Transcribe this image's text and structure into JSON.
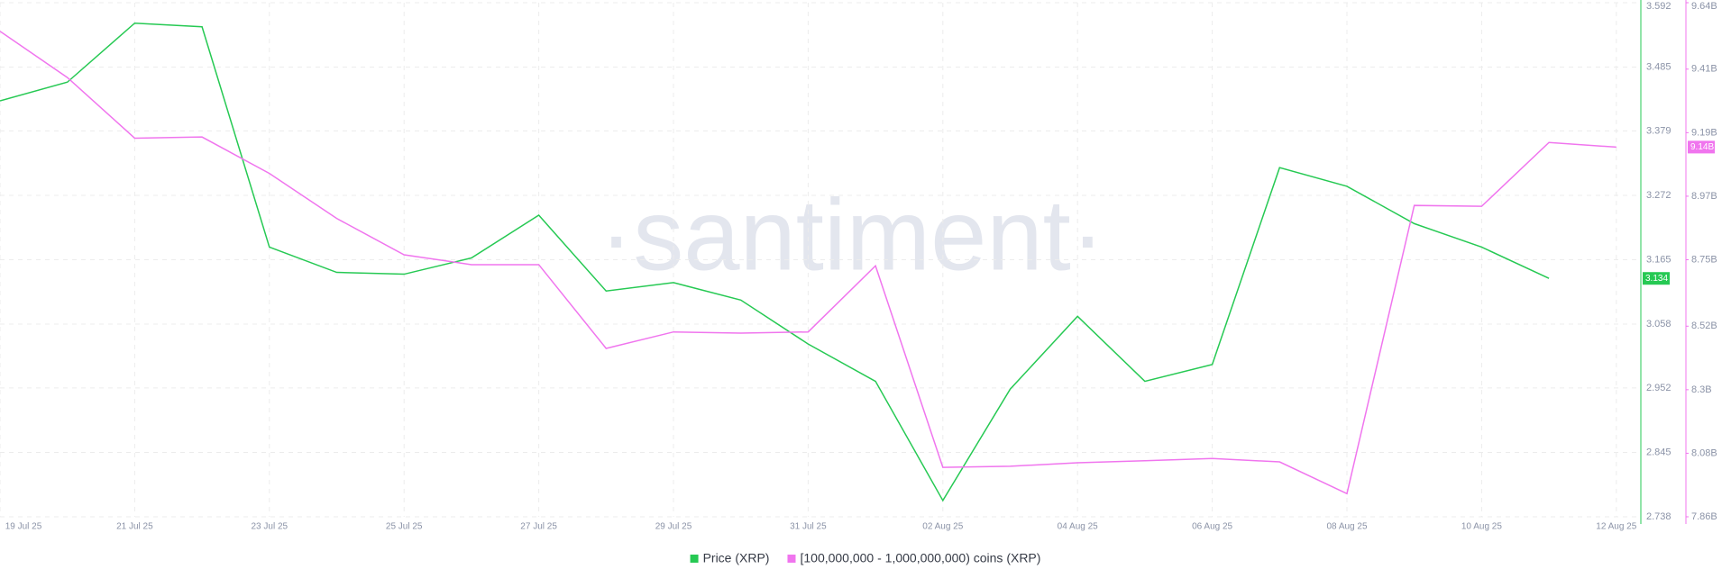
{
  "chart_data": {
    "type": "line",
    "categories": [
      "19 Jul 25",
      null,
      "21 Jul 25",
      null,
      "23 Jul 25",
      null,
      "25 Jul 25",
      null,
      "27 Jul 25",
      null,
      "29 Jul 25",
      null,
      "31 Jul 25",
      null,
      "02 Aug 25",
      null,
      "04 Aug 25",
      null,
      "06 Aug 25",
      null,
      "08 Aug 25",
      null,
      "10 Aug 25",
      null,
      "12 Aug 25"
    ],
    "series": [
      {
        "name": "Price (XRP)",
        "color": "#26c953",
        "axis": "y",
        "values": [
          3.429,
          3.46,
          3.558,
          3.552,
          3.186,
          3.144,
          3.141,
          3.168,
          3.239,
          3.113,
          3.127,
          3.098,
          3.025,
          2.963,
          2.765,
          2.95,
          3.071,
          2.963,
          2.991,
          3.318,
          3.287,
          3.225,
          3.186,
          3.134,
          null
        ],
        "value_labels": [
          null,
          null,
          null,
          null,
          null,
          null,
          null,
          null,
          null,
          null,
          null,
          null,
          null,
          null,
          null,
          null,
          null,
          null,
          null,
          null,
          null,
          null,
          null,
          "3.134",
          null
        ]
      },
      {
        "name": "[100,000,000 - 1,000,000,000) coins (XRP)",
        "color": "#f075ee",
        "axis": "y2",
        "values": [
          9.541,
          9.381,
          9.171,
          9.175,
          9.049,
          8.893,
          8.767,
          8.733,
          8.733,
          8.443,
          8.5,
          8.496,
          8.5,
          8.729,
          8.031,
          8.035,
          8.047,
          8.054,
          8.062,
          8.05,
          7.94,
          8.938,
          8.935,
          9.156,
          9.14
        ],
        "value_labels": [
          null,
          null,
          null,
          null,
          null,
          null,
          null,
          null,
          null,
          null,
          null,
          null,
          null,
          null,
          null,
          null,
          null,
          null,
          null,
          null,
          null,
          null,
          null,
          null,
          "9.14B"
        ]
      }
    ],
    "ylim": [
      2.738,
      3.592
    ],
    "yticks": [
      2.738,
      2.845,
      2.952,
      3.058,
      3.165,
      3.272,
      3.379,
      3.485,
      3.592
    ],
    "y2lim": [
      7.86,
      9.64
    ],
    "y2ticks": [
      {
        "value": 7.86,
        "label": "7.86B"
      },
      {
        "value": 8.08,
        "label": "8.08B"
      },
      {
        "value": 8.3,
        "label": "8.3B"
      },
      {
        "value": 8.52,
        "label": "8.52B"
      },
      {
        "value": 8.75,
        "label": "8.75B"
      },
      {
        "value": 8.97,
        "label": "8.97B"
      },
      {
        "value": 9.19,
        "label": "9.19B"
      },
      {
        "value": 9.41,
        "label": "9.41B"
      },
      {
        "value": 9.64,
        "label": "9.64B"
      }
    ],
    "grid": true,
    "watermark": "·santiment·"
  }
}
